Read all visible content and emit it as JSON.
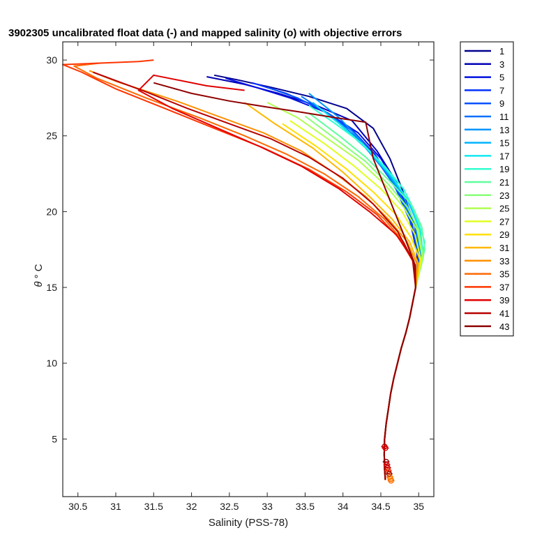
{
  "chart_data": {
    "type": "line",
    "title": "3902305 uncalibrated float data (-) and mapped salinity (o) with objective errors",
    "xlabel": "Salinity (PSS-78)",
    "ylabel_symbol": "θ",
    "ylabel_unit": "° C",
    "xlim": [
      30.3,
      35.2
    ],
    "ylim": [
      1.2,
      31.2
    ],
    "xticks": [
      30.5,
      31,
      31.5,
      32,
      32.5,
      33,
      33.5,
      34,
      34.5,
      35
    ],
    "xtick_labels": [
      "30.5",
      "31",
      "31.5",
      "32",
      "32.5",
      "33",
      "33.5",
      "34",
      "34.5",
      "35"
    ],
    "yticks": [
      5,
      10,
      15,
      20,
      25,
      30
    ],
    "ytick_labels": [
      "5",
      "10",
      "15",
      "20",
      "25",
      "30"
    ],
    "legend_position": "outside-top-right",
    "legend": [
      "1",
      "3",
      "5",
      "7",
      "9",
      "11",
      "13",
      "15",
      "17",
      "19",
      "21",
      "23",
      "25",
      "27",
      "29",
      "31",
      "33",
      "35",
      "37",
      "39",
      "41",
      "43"
    ],
    "legend_colors": [
      "#00008f",
      "#0000b8",
      "#0010e0",
      "#0030ff",
      "#0050ff",
      "#0070ff",
      "#0094ff",
      "#00b4ff",
      "#10e8ef",
      "#30ffcf",
      "#60ff9f",
      "#88ff78",
      "#b0ff50",
      "#e0ff20",
      "#ffe000",
      "#ffb800",
      "#ff9000",
      "#ff6800",
      "#ff3400",
      "#e00000",
      "#b80000",
      "#900000"
    ],
    "deep_common": [
      [
        34.56,
        2.3
      ],
      [
        34.55,
        3.0
      ],
      [
        34.545,
        4.0
      ],
      [
        34.55,
        5.0
      ],
      [
        34.57,
        6.0
      ],
      [
        34.6,
        7.0
      ],
      [
        34.63,
        8.0
      ],
      [
        34.67,
        9.0
      ],
      [
        34.72,
        10.0
      ],
      [
        34.77,
        11.0
      ],
      [
        34.83,
        12.0
      ],
      [
        34.88,
        13.0
      ],
      [
        34.92,
        14.0
      ],
      [
        34.96,
        15.0
      ]
    ],
    "series": [
      {
        "name": "1",
        "x": [
          34.96,
          34.98,
          34.95,
          34.78,
          34.62,
          34.4,
          34.05,
          33.55,
          33.05,
          32.6,
          32.3
        ],
        "y": [
          15.0,
          17.0,
          19.0,
          21.5,
          23.5,
          25.5,
          26.8,
          27.6,
          28.2,
          28.7,
          29.0
        ]
      },
      {
        "name": "3",
        "x": [
          34.96,
          34.99,
          34.9,
          34.7,
          34.45,
          34.12,
          33.65,
          33.15,
          32.7,
          32.2
        ],
        "y": [
          15.0,
          17.0,
          19.5,
          22.0,
          24.0,
          26.0,
          27.0,
          27.8,
          28.4,
          28.9
        ]
      },
      {
        "name": "5",
        "x": [
          34.96,
          35.0,
          34.9,
          34.75,
          34.5,
          34.2,
          33.8,
          33.3,
          32.85,
          32.45
        ],
        "y": [
          15.0,
          17.0,
          19.5,
          21.5,
          23.5,
          25.2,
          26.5,
          27.5,
          28.2,
          28.8
        ]
      },
      {
        "name": "7",
        "x": [
          34.96,
          34.99,
          34.88,
          34.68,
          34.42,
          34.1,
          33.7,
          33.25,
          32.8
        ],
        "y": [
          15.0,
          17.0,
          19.5,
          21.8,
          23.8,
          25.5,
          26.8,
          27.8,
          28.5
        ]
      },
      {
        "name": "9",
        "x": [
          34.96,
          35.0,
          34.92,
          34.7,
          34.45,
          34.15,
          33.8,
          33.4,
          33.0
        ],
        "y": [
          15.0,
          17.0,
          19.0,
          21.5,
          23.5,
          25.2,
          26.5,
          27.5,
          28.2
        ]
      },
      {
        "name": "11",
        "x": [
          34.96,
          35.02,
          34.95,
          34.75,
          34.5,
          34.2,
          33.85,
          33.45
        ],
        "y": [
          15.0,
          17.0,
          19.0,
          21.2,
          23.0,
          24.8,
          26.3,
          27.6
        ]
      },
      {
        "name": "13",
        "x": [
          34.96,
          35.03,
          34.97,
          34.8,
          34.55,
          34.25,
          33.95,
          33.55
        ],
        "y": [
          15.0,
          17.0,
          19.0,
          21.0,
          22.8,
          24.6,
          26.2,
          27.8
        ]
      },
      {
        "name": "15",
        "x": [
          34.96,
          35.05,
          35.0,
          34.85,
          34.6,
          34.3,
          33.95,
          33.6
        ],
        "y": [
          15.0,
          17.0,
          19.0,
          20.8,
          22.5,
          24.2,
          25.8,
          27.2
        ]
      },
      {
        "name": "17",
        "x": [
          34.96,
          35.06,
          35.02,
          34.88,
          34.65,
          34.35,
          34.0,
          33.65
        ],
        "y": [
          15.0,
          17.0,
          18.8,
          20.6,
          22.3,
          24.0,
          25.6,
          27.0
        ]
      },
      {
        "name": "19",
        "x": [
          34.96,
          35.08,
          34.95,
          34.8,
          34.55,
          34.25,
          33.9,
          33.55
        ],
        "y": [
          15.0,
          18.0,
          20.0,
          21.5,
          23.0,
          24.5,
          25.8,
          27.0
        ]
      },
      {
        "name": "21",
        "x": [
          34.96,
          35.08,
          35.04,
          34.9,
          34.62,
          34.3,
          33.95,
          33.55
        ],
        "y": [
          15.0,
          17.5,
          19.0,
          20.5,
          22.0,
          23.6,
          25.0,
          26.5
        ]
      },
      {
        "name": "23",
        "x": [
          34.96,
          35.06,
          35.0,
          34.85,
          34.6,
          34.3,
          33.9,
          33.5
        ],
        "y": [
          15.0,
          17.0,
          18.8,
          20.3,
          21.8,
          23.3,
          24.8,
          26.3
        ]
      },
      {
        "name": "25",
        "x": [
          34.96,
          35.05,
          34.98,
          34.8,
          34.55,
          34.2,
          33.8,
          33.4,
          33.0
        ],
        "y": [
          15.0,
          17.0,
          18.8,
          20.3,
          21.8,
          23.4,
          24.8,
          26.2,
          27.2
        ]
      },
      {
        "name": "27",
        "x": [
          34.96,
          35.03,
          34.95,
          34.78,
          34.5,
          34.15,
          33.75,
          33.3
        ],
        "y": [
          15.0,
          16.8,
          18.5,
          20.0,
          21.5,
          23.0,
          24.5,
          26.0
        ]
      },
      {
        "name": "29",
        "x": [
          34.96,
          35.02,
          34.9,
          34.7,
          34.4,
          34.05,
          33.65,
          33.2
        ],
        "y": [
          15.0,
          16.8,
          18.3,
          19.8,
          21.3,
          22.8,
          24.3,
          25.8
        ]
      },
      {
        "name": "31",
        "x": [
          34.96,
          35.0,
          34.88,
          34.65,
          34.35,
          34.0,
          33.6,
          33.1,
          32.7
        ],
        "y": [
          15.0,
          16.5,
          18.0,
          19.5,
          21.0,
          22.6,
          24.2,
          25.8,
          27.2
        ]
      },
      {
        "name": "33",
        "x": [
          34.96,
          34.98,
          34.85,
          34.6,
          34.3,
          33.9,
          33.45,
          32.95,
          32.4,
          31.8,
          31.0,
          30.65
        ],
        "y": [
          15.0,
          16.5,
          18.0,
          19.5,
          21.0,
          22.5,
          24.0,
          25.2,
          26.2,
          27.3,
          28.6,
          29.3
        ]
      },
      {
        "name": "35",
        "x": [
          34.96,
          34.95,
          34.8,
          34.55,
          34.2,
          33.75,
          33.25,
          32.7,
          32.1,
          31.4,
          30.75,
          30.45,
          30.8
        ],
        "y": [
          15.0,
          16.5,
          18.0,
          19.5,
          21.0,
          22.5,
          23.8,
          25.0,
          26.2,
          27.5,
          28.8,
          29.6,
          29.8
        ]
      },
      {
        "name": "37",
        "x": [
          34.96,
          34.95,
          34.75,
          34.45,
          34.05,
          33.55,
          32.95,
          32.3,
          31.65,
          31.0,
          30.55,
          30.3,
          31.3,
          31.5
        ],
        "y": [
          15.0,
          16.5,
          18.2,
          19.8,
          21.3,
          22.8,
          24.2,
          25.5,
          26.8,
          28.1,
          29.2,
          29.7,
          29.9,
          30.0
        ]
      },
      {
        "name": "39",
        "x": [
          34.96,
          34.93,
          34.7,
          34.35,
          33.95,
          33.45,
          32.9,
          32.3,
          31.75,
          31.3,
          31.5,
          32.2,
          32.7
        ],
        "y": [
          15.0,
          16.8,
          18.5,
          20.0,
          21.5,
          23.0,
          24.3,
          25.6,
          26.8,
          28.0,
          29.0,
          28.3,
          28.0
        ]
      },
      {
        "name": "41",
        "x": [
          34.96,
          34.92,
          34.72,
          34.4,
          34.0,
          33.55,
          33.05,
          32.5,
          31.95,
          31.4,
          30.7
        ],
        "y": [
          15.0,
          16.8,
          18.7,
          20.5,
          22.2,
          23.6,
          24.8,
          25.8,
          26.8,
          27.9,
          29.2
        ]
      },
      {
        "name": "43",
        "x": [
          34.96,
          34.95,
          34.8,
          34.6,
          34.4,
          34.3,
          33.9,
          33.4,
          33.0,
          32.5,
          32.0,
          31.5
        ],
        "y": [
          15.0,
          16.5,
          18.5,
          21.0,
          23.5,
          25.9,
          26.2,
          26.6,
          26.9,
          27.3,
          27.8,
          28.5
        ]
      }
    ],
    "mapped_points": [
      {
        "x": 34.55,
        "y": 4.5,
        "color": "#b80000"
      },
      {
        "x": 34.56,
        "y": 4.4,
        "color": "#e00000"
      },
      {
        "x": 34.57,
        "y": 3.5,
        "color": "#900000"
      },
      {
        "x": 34.58,
        "y": 3.3,
        "color": "#e00000"
      },
      {
        "x": 34.59,
        "y": 3.1,
        "color": "#b80000"
      },
      {
        "x": 34.6,
        "y": 2.9,
        "color": "#ff3400"
      },
      {
        "x": 34.61,
        "y": 2.7,
        "color": "#900000"
      },
      {
        "x": 34.62,
        "y": 2.5,
        "color": "#ff6800"
      },
      {
        "x": 34.63,
        "y": 2.35,
        "color": "#ff9000"
      },
      {
        "x": 34.635,
        "y": 2.25,
        "color": "#ff6800"
      }
    ]
  }
}
